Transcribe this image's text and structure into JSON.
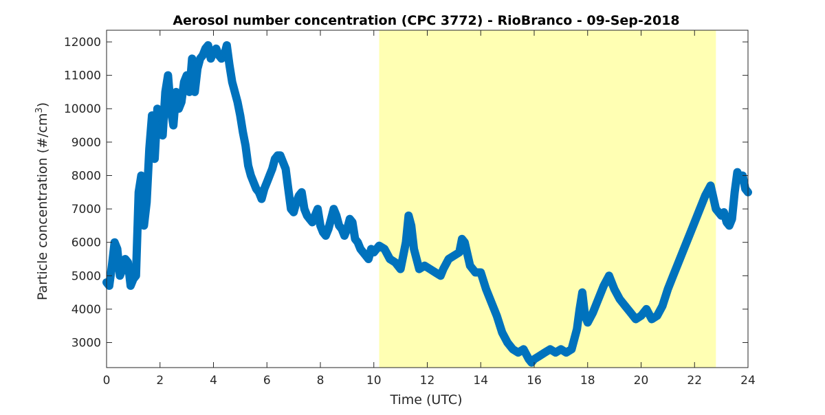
{
  "chart_data": {
    "type": "scatter",
    "title": "Aerosol number concentration (CPC 3772) - RioBranco - 09-Sep-2018",
    "xlabel": "Time (UTC)",
    "ylabel": {
      "main": "Particle concentration (#/cm",
      "superscript": "3",
      "suffix": ")"
    },
    "xlim": [
      0,
      24
    ],
    "ylim": [
      2250,
      12350
    ],
    "xticks": [
      0,
      2,
      4,
      6,
      8,
      10,
      12,
      14,
      16,
      18,
      20,
      22,
      24
    ],
    "yticks": [
      3000,
      4000,
      5000,
      6000,
      7000,
      8000,
      9000,
      10000,
      11000,
      12000
    ],
    "grid": false,
    "marker": "asterisk",
    "shaded_interval": {
      "x_start": 10.2,
      "x_end": 22.8,
      "color": "#ffffb3"
    },
    "series": [
      {
        "color": "#0072bd",
        "points": [
          [
            0.0,
            4800
          ],
          [
            0.1,
            4700
          ],
          [
            0.2,
            5300
          ],
          [
            0.3,
            6000
          ],
          [
            0.4,
            5800
          ],
          [
            0.5,
            5000
          ],
          [
            0.6,
            5200
          ],
          [
            0.7,
            5500
          ],
          [
            0.8,
            5400
          ],
          [
            0.9,
            4700
          ],
          [
            1.0,
            4900
          ],
          [
            1.1,
            5000
          ],
          [
            1.2,
            7500
          ],
          [
            1.3,
            8000
          ],
          [
            1.4,
            6500
          ],
          [
            1.5,
            7200
          ],
          [
            1.6,
            8800
          ],
          [
            1.7,
            9800
          ],
          [
            1.8,
            8500
          ],
          [
            1.9,
            10000
          ],
          [
            2.0,
            9600
          ],
          [
            2.1,
            9200
          ],
          [
            2.2,
            10500
          ],
          [
            2.3,
            11000
          ],
          [
            2.4,
            10000
          ],
          [
            2.5,
            9500
          ],
          [
            2.6,
            10500
          ],
          [
            2.7,
            10000
          ],
          [
            2.8,
            10200
          ],
          [
            2.9,
            10800
          ],
          [
            3.0,
            11000
          ],
          [
            3.1,
            10500
          ],
          [
            3.2,
            11500
          ],
          [
            3.3,
            10500
          ],
          [
            3.4,
            11200
          ],
          [
            3.5,
            11500
          ],
          [
            3.6,
            11600
          ],
          [
            3.7,
            11800
          ],
          [
            3.8,
            11900
          ],
          [
            3.9,
            11500
          ],
          [
            4.0,
            11700
          ],
          [
            4.1,
            11800
          ],
          [
            4.2,
            11600
          ],
          [
            4.3,
            11500
          ],
          [
            4.4,
            11600
          ],
          [
            4.5,
            11900
          ],
          [
            4.6,
            11300
          ],
          [
            4.7,
            10800
          ],
          [
            4.8,
            10500
          ],
          [
            4.9,
            10200
          ],
          [
            5.0,
            9800
          ],
          [
            5.1,
            9300
          ],
          [
            5.2,
            8900
          ],
          [
            5.3,
            8300
          ],
          [
            5.4,
            8000
          ],
          [
            5.5,
            7800
          ],
          [
            5.6,
            7600
          ],
          [
            5.7,
            7500
          ],
          [
            5.8,
            7300
          ],
          [
            5.9,
            7600
          ],
          [
            6.0,
            7800
          ],
          [
            6.1,
            8000
          ],
          [
            6.2,
            8200
          ],
          [
            6.3,
            8500
          ],
          [
            6.4,
            8600
          ],
          [
            6.5,
            8600
          ],
          [
            6.6,
            8400
          ],
          [
            6.7,
            8200
          ],
          [
            6.8,
            7600
          ],
          [
            6.9,
            7000
          ],
          [
            7.0,
            6900
          ],
          [
            7.1,
            7200
          ],
          [
            7.2,
            7400
          ],
          [
            7.3,
            7500
          ],
          [
            7.4,
            7000
          ],
          [
            7.5,
            6800
          ],
          [
            7.6,
            6700
          ],
          [
            7.7,
            6600
          ],
          [
            7.8,
            6800
          ],
          [
            7.9,
            7000
          ],
          [
            8.0,
            6500
          ],
          [
            8.1,
            6300
          ],
          [
            8.2,
            6200
          ],
          [
            8.3,
            6400
          ],
          [
            8.4,
            6700
          ],
          [
            8.5,
            7000
          ],
          [
            8.6,
            6800
          ],
          [
            8.7,
            6500
          ],
          [
            8.8,
            6400
          ],
          [
            8.9,
            6200
          ],
          [
            9.0,
            6400
          ],
          [
            9.1,
            6700
          ],
          [
            9.2,
            6600
          ],
          [
            9.3,
            6100
          ],
          [
            9.4,
            6000
          ],
          [
            9.5,
            5800
          ],
          [
            9.6,
            5700
          ],
          [
            9.7,
            5600
          ],
          [
            9.8,
            5500
          ],
          [
            9.9,
            5800
          ],
          [
            10.0,
            5700
          ],
          [
            10.2,
            5900
          ],
          [
            10.4,
            5800
          ],
          [
            10.6,
            5500
          ],
          [
            10.8,
            5400
          ],
          [
            11.0,
            5200
          ],
          [
            11.2,
            6000
          ],
          [
            11.3,
            6800
          ],
          [
            11.4,
            6500
          ],
          [
            11.5,
            5800
          ],
          [
            11.7,
            5200
          ],
          [
            11.9,
            5300
          ],
          [
            12.1,
            5200
          ],
          [
            12.3,
            5100
          ],
          [
            12.5,
            5000
          ],
          [
            12.6,
            5200
          ],
          [
            12.8,
            5500
          ],
          [
            13.0,
            5600
          ],
          [
            13.2,
            5700
          ],
          [
            13.3,
            6100
          ],
          [
            13.4,
            6000
          ],
          [
            13.6,
            5300
          ],
          [
            13.8,
            5100
          ],
          [
            14.0,
            5100
          ],
          [
            14.2,
            4600
          ],
          [
            14.4,
            4200
          ],
          [
            14.6,
            3800
          ],
          [
            14.8,
            3300
          ],
          [
            15.0,
            3000
          ],
          [
            15.2,
            2800
          ],
          [
            15.4,
            2700
          ],
          [
            15.6,
            2800
          ],
          [
            15.8,
            2500
          ],
          [
            15.9,
            2400
          ],
          [
            16.0,
            2500
          ],
          [
            16.2,
            2600
          ],
          [
            16.4,
            2700
          ],
          [
            16.6,
            2800
          ],
          [
            16.8,
            2700
          ],
          [
            17.0,
            2800
          ],
          [
            17.2,
            2700
          ],
          [
            17.4,
            2800
          ],
          [
            17.6,
            3400
          ],
          [
            17.7,
            4000
          ],
          [
            17.8,
            4500
          ],
          [
            17.9,
            3800
          ],
          [
            18.0,
            3600
          ],
          [
            18.2,
            3900
          ],
          [
            18.4,
            4300
          ],
          [
            18.6,
            4700
          ],
          [
            18.8,
            5000
          ],
          [
            19.0,
            4600
          ],
          [
            19.2,
            4300
          ],
          [
            19.4,
            4100
          ],
          [
            19.6,
            3900
          ],
          [
            19.8,
            3700
          ],
          [
            20.0,
            3800
          ],
          [
            20.2,
            4000
          ],
          [
            20.4,
            3700
          ],
          [
            20.6,
            3800
          ],
          [
            20.8,
            4100
          ],
          [
            21.0,
            4600
          ],
          [
            21.2,
            5000
          ],
          [
            21.4,
            5400
          ],
          [
            21.6,
            5800
          ],
          [
            21.8,
            6200
          ],
          [
            22.0,
            6600
          ],
          [
            22.2,
            7000
          ],
          [
            22.4,
            7400
          ],
          [
            22.6,
            7700
          ],
          [
            22.8,
            7000
          ],
          [
            23.0,
            6800
          ],
          [
            23.1,
            6900
          ],
          [
            23.2,
            6600
          ],
          [
            23.3,
            6500
          ],
          [
            23.4,
            6700
          ],
          [
            23.5,
            7500
          ],
          [
            23.6,
            8100
          ],
          [
            23.7,
            7900
          ],
          [
            23.8,
            8000
          ],
          [
            23.9,
            7600
          ],
          [
            24.0,
            7500
          ]
        ]
      }
    ]
  }
}
